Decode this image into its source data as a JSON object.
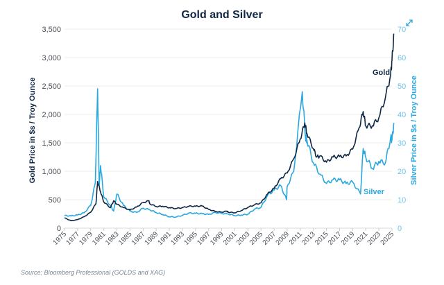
{
  "chart_data": {
    "type": "line",
    "title": "Gold and Silver",
    "ylabel": "Gold Price in $s / Troy Ounce",
    "y2label": "Silver Price in $s / Troy Ounce",
    "ylim": [
      0,
      3500
    ],
    "y2lim": [
      0,
      70
    ],
    "yticks": [
      "0",
      "500",
      "1,000",
      "1,500",
      "2,000",
      "2,500",
      "3,000",
      "3,500"
    ],
    "y2ticks": [
      "0",
      "10",
      "20",
      "30",
      "40",
      "50",
      "60",
      "70"
    ],
    "xlim": [
      1975,
      2025.4
    ],
    "xticks": [
      "1975",
      "1977",
      "1979",
      "1981",
      "1983",
      "1985",
      "1987",
      "1989",
      "1991",
      "1993",
      "1995",
      "1997",
      "1999",
      "2001",
      "2003",
      "2005",
      "2007",
      "2009",
      "2011",
      "2013",
      "2015",
      "2017",
      "2019",
      "2021",
      "2023",
      "2025"
    ],
    "grid": true,
    "series": [
      {
        "name": "Gold",
        "axis": "left",
        "color": "#0f2744",
        "x": [
          1975,
          1976,
          1977,
          1978,
          1979,
          1979.8,
          1980.05,
          1980.5,
          1981,
          1982,
          1982.5,
          1983,
          1984,
          1985,
          1986,
          1987,
          1987.9,
          1988,
          1989,
          1990,
          1991,
          1992,
          1993,
          1994,
          1995,
          1996,
          1997,
          1998,
          1999,
          1999.8,
          2000,
          2001,
          2002,
          2003,
          2004,
          2005,
          2006,
          2007,
          2008,
          2009,
          2010,
          2011,
          2011.7,
          2012,
          2013,
          2013.5,
          2014,
          2015,
          2016,
          2017,
          2018,
          2019,
          2020,
          2020.6,
          2021,
          2022,
          2023,
          2024,
          2024.8,
          2025,
          2025.3
        ],
        "y": [
          180,
          130,
          150,
          200,
          280,
          430,
          820,
          640,
          460,
          360,
          480,
          420,
          360,
          320,
          370,
          450,
          480,
          430,
          380,
          385,
          360,
          345,
          360,
          385,
          385,
          390,
          330,
          295,
          280,
          300,
          280,
          270,
          310,
          365,
          410,
          445,
          600,
          700,
          870,
          970,
          1220,
          1570,
          1850,
          1670,
          1400,
          1250,
          1270,
          1160,
          1250,
          1260,
          1270,
          1390,
          1770,
          2050,
          1800,
          1800,
          1940,
          2300,
          2700,
          2950,
          3420
        ]
      },
      {
        "name": "Silver",
        "axis": "right",
        "color": "#29a8e0",
        "x": [
          1975,
          1976,
          1977,
          1978,
          1979,
          1979.7,
          1980.05,
          1980.3,
          1980.5,
          1981,
          1982,
          1982.5,
          1983,
          1984,
          1985,
          1986,
          1987,
          1988,
          1989,
          1990,
          1991,
          1992,
          1993,
          1994,
          1995,
          1996,
          1997,
          1998,
          1999,
          2000,
          2001,
          2002,
          2003,
          2004,
          2005,
          2006,
          2007,
          2008,
          2008.9,
          2009,
          2010,
          2011.3,
          2011.8,
          2012,
          2013,
          2014,
          2015,
          2016,
          2017,
          2018,
          2019,
          2020.2,
          2020.6,
          2021,
          2022,
          2023,
          2024,
          2024.8,
          2025,
          2025.3
        ],
        "y": [
          4.4,
          4.3,
          4.6,
          5.4,
          8,
          16,
          49,
          15,
          22,
          11,
          8,
          6,
          12,
          8,
          6,
          5.5,
          7,
          6.5,
          5.5,
          4.8,
          4,
          3.9,
          4.5,
          5.3,
          5.2,
          5.1,
          4.8,
          5.5,
          5.2,
          5,
          4.4,
          4.6,
          4.9,
          6.7,
          7.3,
          11.5,
          13.4,
          15,
          10,
          14.7,
          20,
          48,
          32,
          31,
          23,
          19,
          15.7,
          17,
          17,
          15.7,
          16.2,
          12,
          28,
          25,
          21,
          23.5,
          23,
          32,
          31,
          37
        ]
      }
    ],
    "annotations": [
      "Gold",
      "Silver"
    ]
  },
  "source": "Source: Bloomberg Professional (GOLDS and XAG)"
}
